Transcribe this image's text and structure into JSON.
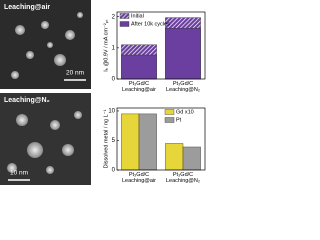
{
  "images": [
    {
      "label": "Leaching@air",
      "scale": "20 nm"
    },
    {
      "label": "Leaching@N₂",
      "scale": "10 nm"
    }
  ],
  "chart_data": [
    {
      "type": "bar",
      "barmode": "overlay",
      "ylabel": "Iₖ @0.9V / mA cm⁻²ₚₜ",
      "categories": [
        "Pt₃Gd/C\nLeaching@air",
        "Pt₃Gd/C\nLeaching@N₂"
      ],
      "series": [
        {
          "name": "Initial",
          "color": "#6b3fa0",
          "hatch": true,
          "values": [
            1.1,
            1.97
          ]
        },
        {
          "name": "After 10k cycles",
          "color": "#6b3fa0",
          "hatch": false,
          "values": [
            0.77,
            1.63
          ]
        }
      ],
      "ylim": [
        0,
        2.15
      ],
      "yticks": [
        0,
        1,
        2
      ],
      "legend": "upper left"
    },
    {
      "type": "bar",
      "barmode": "group",
      "ylabel": "Dissolved metal / ng L⁻¹",
      "categories": [
        "Pt₃Gd/C\nLeaching@air",
        "Pt₃Gd/C\nLeaching@N₂"
      ],
      "series": [
        {
          "name": "Gd x10",
          "color": "#e6d63a",
          "values": [
            9.5,
            4.5
          ]
        },
        {
          "name": "Pt",
          "color": "#9c9c9c",
          "values": [
            9.5,
            3.9
          ]
        }
      ],
      "ylim": [
        0,
        10.5
      ],
      "yticks": [
        0,
        5,
        10
      ],
      "legend": "upper right"
    }
  ]
}
